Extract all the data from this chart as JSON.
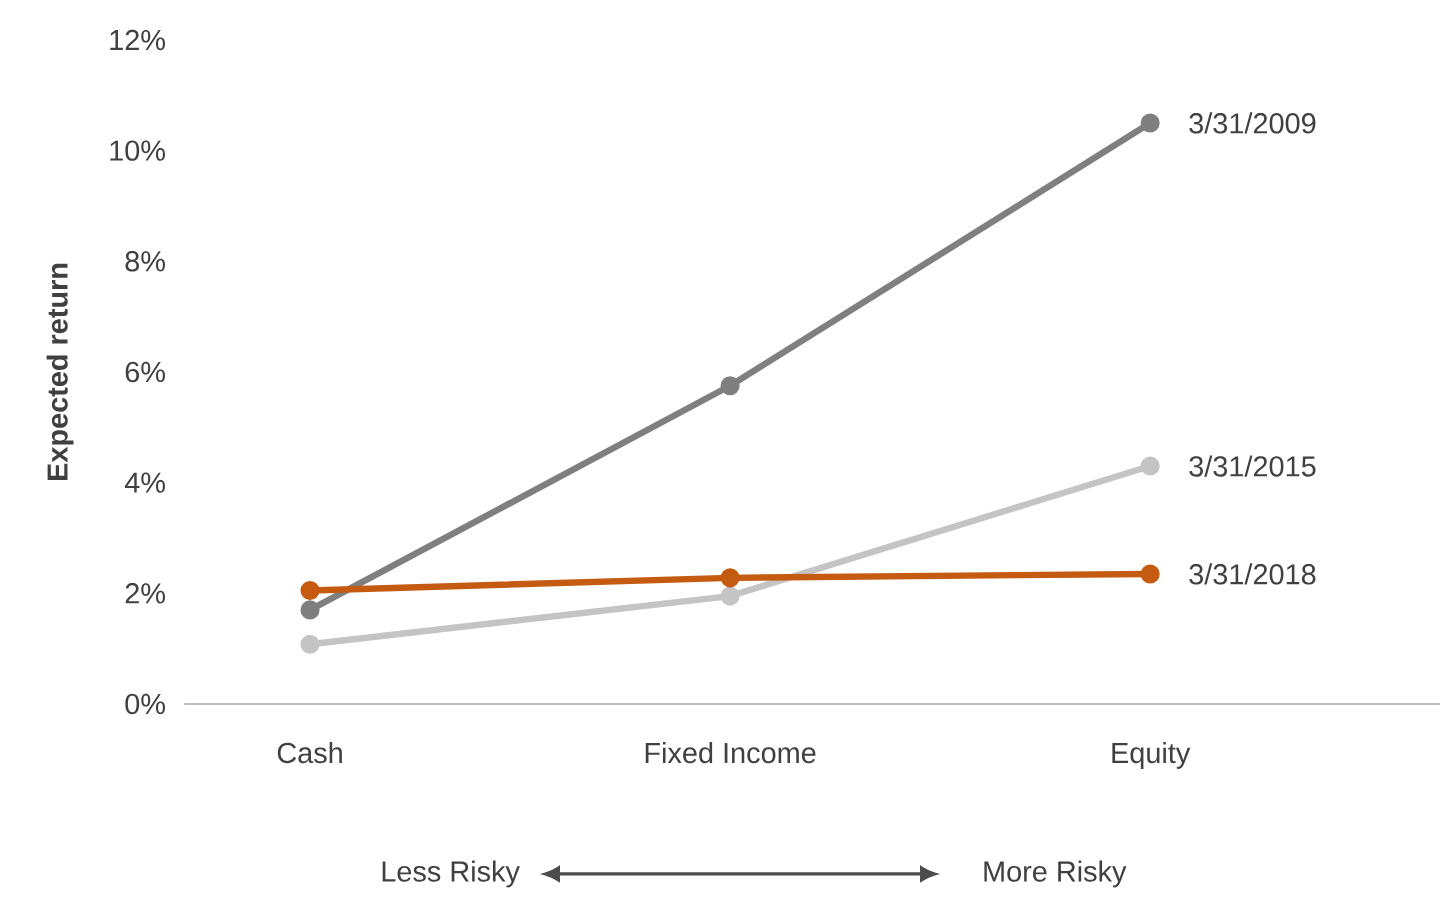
{
  "chart_data": {
    "type": "line",
    "ylabel": "Expected return",
    "categories": [
      "Cash",
      "Fixed Income",
      "Equity"
    ],
    "series": [
      {
        "name": "3/31/2009",
        "color": "#7f7f7f",
        "values": [
          1.7,
          5.75,
          10.5
        ]
      },
      {
        "name": "3/31/2015",
        "color": "#c4c4c4",
        "values": [
          1.08,
          1.95,
          4.3
        ]
      },
      {
        "name": "3/31/2018",
        "color": "#c55a11",
        "values": [
          2.05,
          2.28,
          2.35
        ]
      }
    ],
    "ylim": [
      0,
      12
    ],
    "yticks": [
      {
        "value": 0,
        "label": "0%"
      },
      {
        "value": 2,
        "label": "2%"
      },
      {
        "value": 4,
        "label": "4%"
      },
      {
        "value": 6,
        "label": "6%"
      },
      {
        "value": 8,
        "label": "8%"
      },
      {
        "value": 10,
        "label": "10%"
      },
      {
        "value": 12,
        "label": "12%"
      }
    ],
    "marker": "circle",
    "line_style": "solid",
    "annotations": [
      "Less Risky",
      "More Risky"
    ]
  }
}
